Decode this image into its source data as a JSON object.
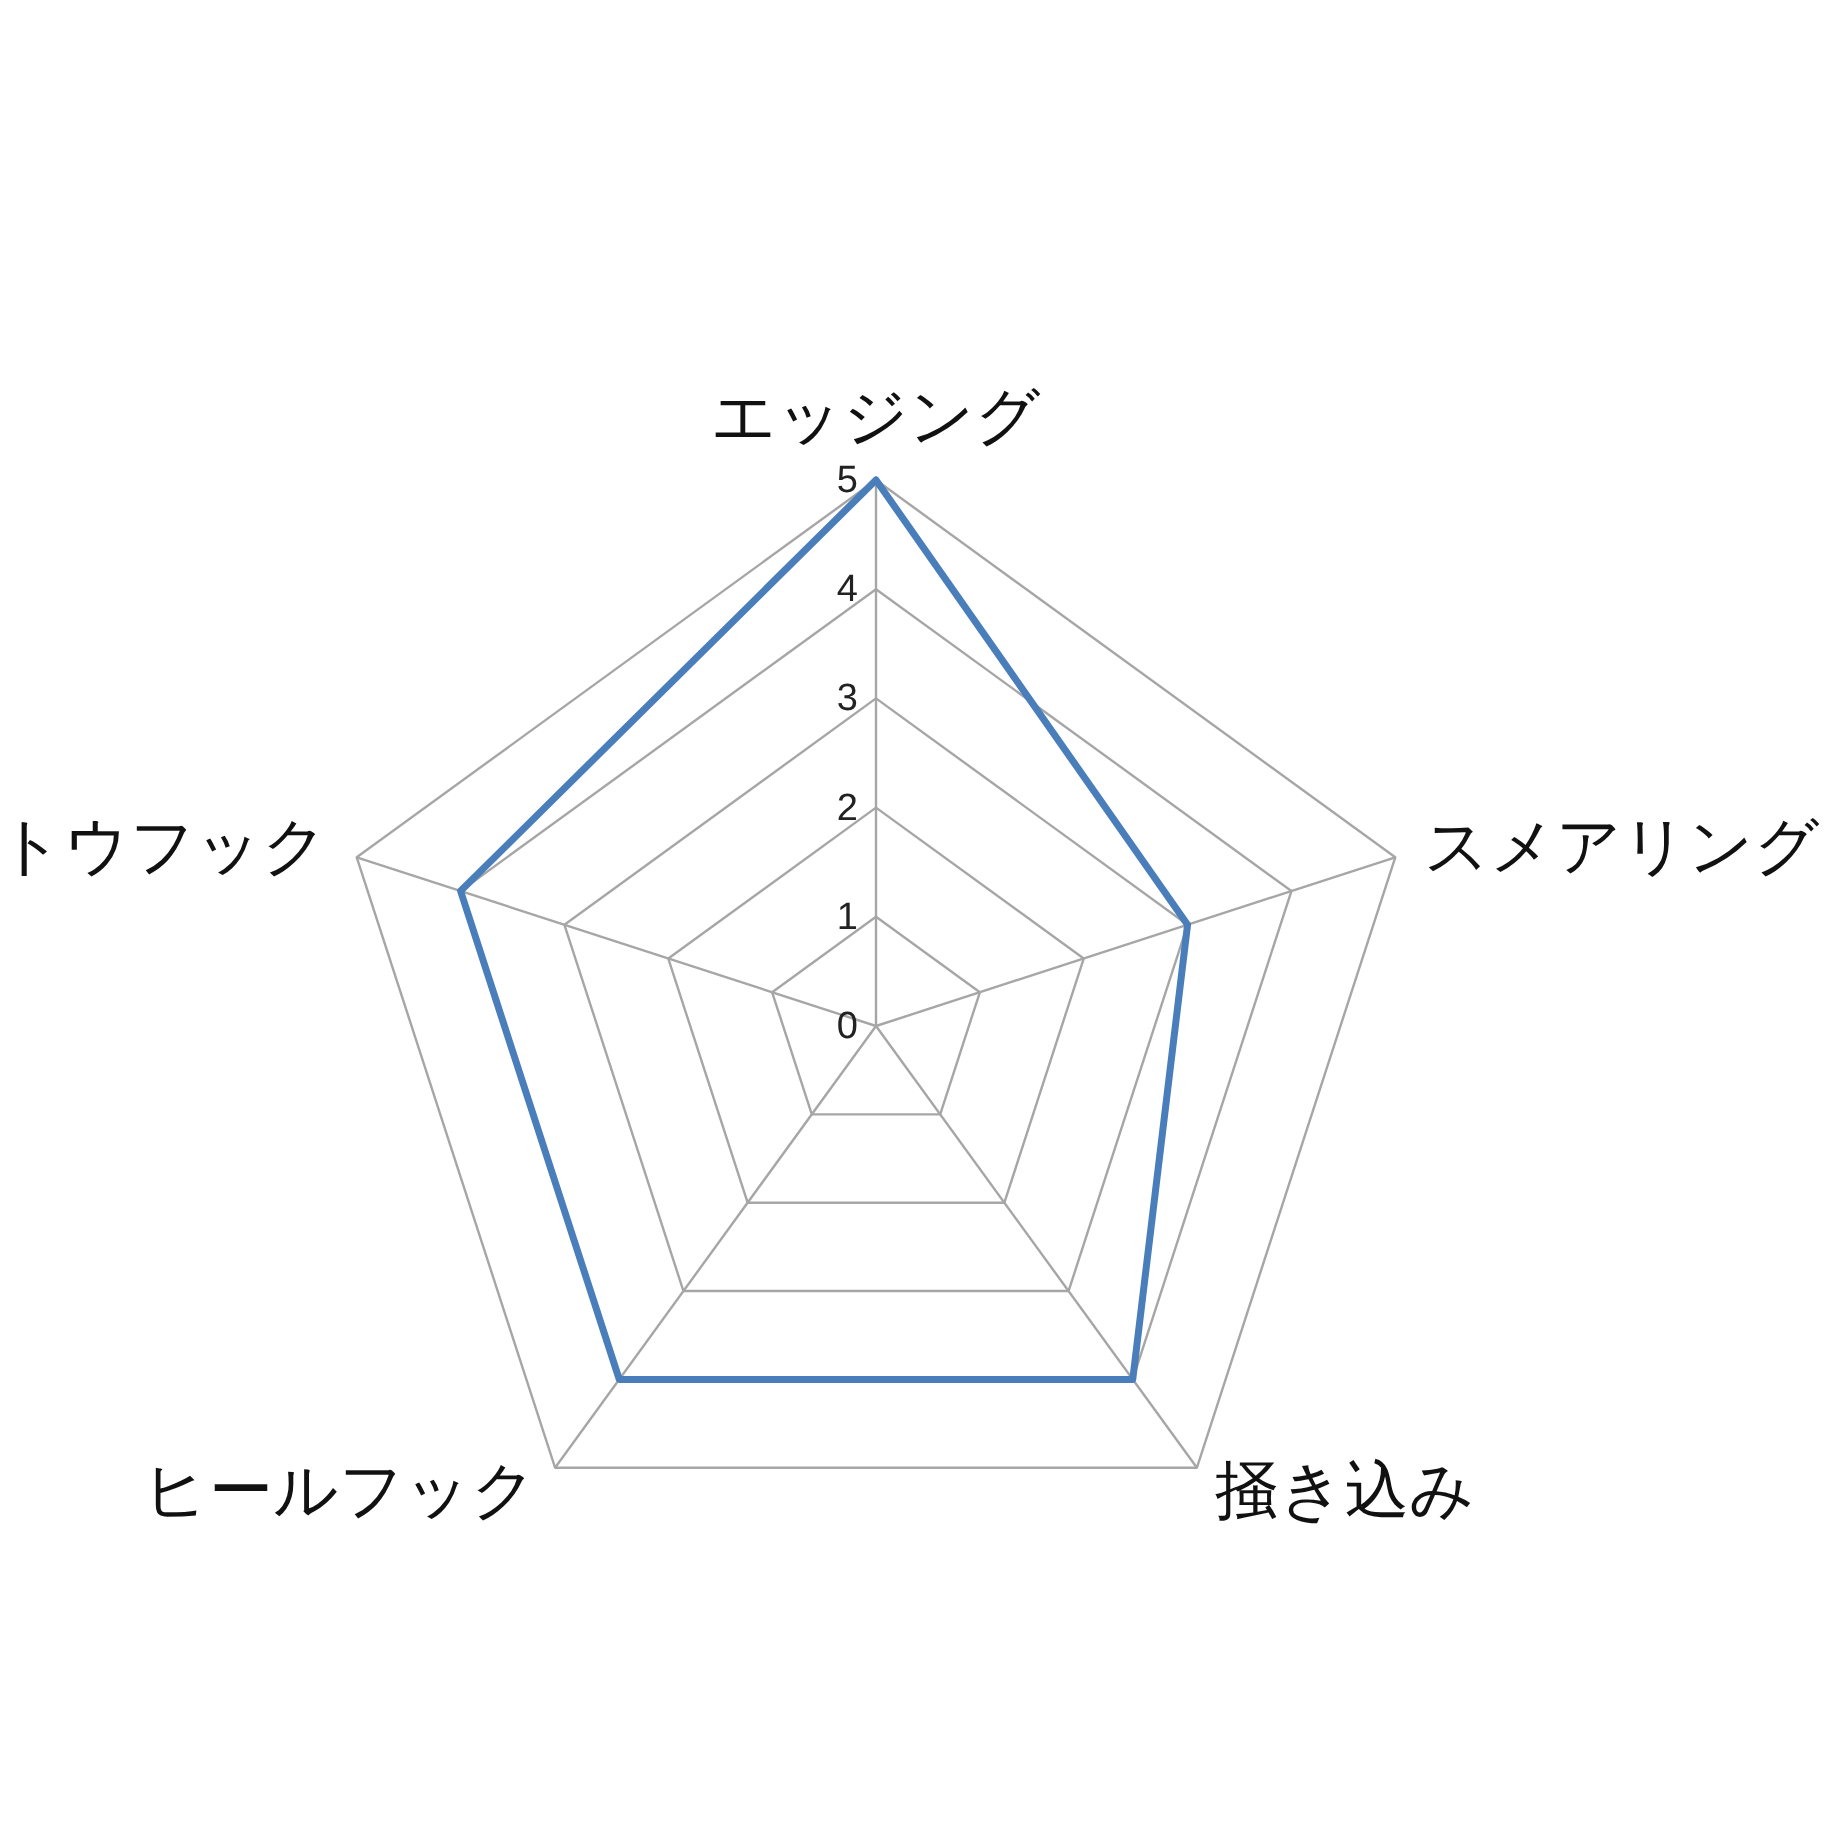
{
  "chart_data": {
    "type": "radar",
    "categories": [
      "エッジング",
      "スメアリング",
      "掻き込み",
      "ヒールフック",
      "トウフック"
    ],
    "series": [
      {
        "color": "#4a7ebb",
        "values": [
          5,
          3,
          4,
          4,
          4
        ]
      }
    ],
    "ylim": [
      0,
      5
    ],
    "yticks": [
      0,
      1,
      2,
      3,
      4,
      5
    ],
    "grid": true
  }
}
